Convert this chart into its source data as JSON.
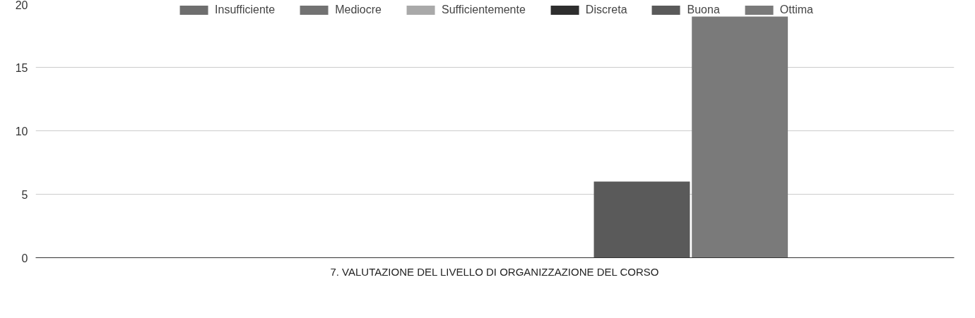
{
  "chart_data": {
    "type": "bar",
    "categories": [
      "7. VALUTAZIONE DEL LIVELLO DI ORGANIZZAZIONE DEL CORSO"
    ],
    "series": [
      {
        "name": "Insufficiente",
        "color": "#6e6e6e",
        "values": [
          0
        ]
      },
      {
        "name": "Mediocre",
        "color": "#727272",
        "values": [
          0
        ]
      },
      {
        "name": "Sufficientemente",
        "color": "#a9a9a9",
        "values": [
          0
        ]
      },
      {
        "name": "Discreta",
        "color": "#2e2e2e",
        "values": [
          0
        ]
      },
      {
        "name": "Buona",
        "color": "#5a5a5a",
        "values": [
          6
        ]
      },
      {
        "name": "Ottima",
        "color": "#7a7a7a",
        "values": [
          19
        ]
      }
    ],
    "ylim": [
      0,
      20
    ],
    "yticks": [
      0,
      5,
      10,
      15,
      20
    ],
    "grid": "y",
    "legend": "top"
  }
}
